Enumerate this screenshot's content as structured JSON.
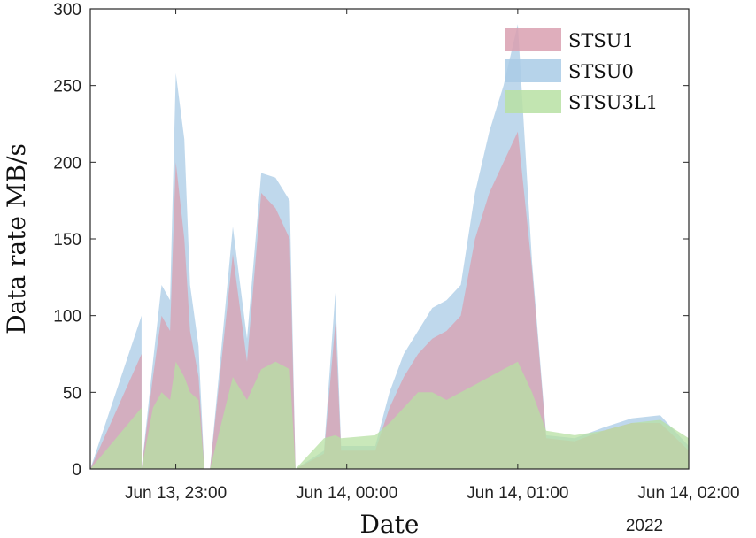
{
  "chart_data": {
    "type": "area",
    "xlabel": "Date",
    "ylabel": "Data rate MB/s",
    "year_label": "2022",
    "ylim": [
      0,
      300
    ],
    "yticks": [
      0,
      50,
      100,
      150,
      200,
      250,
      300
    ],
    "xlim": [
      "2022-06-13 22:30",
      "2022-06-14 02:00"
    ],
    "xticks": [
      {
        "t": "2022-06-13 23:00",
        "label": "Jun 13, 23:00"
      },
      {
        "t": "2022-06-14 00:00",
        "label": "Jun 14, 00:00"
      },
      {
        "t": "2022-06-14 01:00",
        "label": "Jun 14, 01:00"
      },
      {
        "t": "2022-06-14 02:00",
        "label": "Jun 14, 02:00"
      }
    ],
    "grid": false,
    "legend_position": "top-right",
    "series": [
      {
        "name": "STSU1",
        "color": "#d9a0b0",
        "points": [
          [
            "2022-06-13 22:30",
            0
          ],
          [
            "2022-06-13 22:48",
            75
          ],
          [
            "2022-06-13 22:48",
            0
          ],
          [
            "2022-06-13 22:52",
            60
          ],
          [
            "2022-06-13 22:55",
            100
          ],
          [
            "2022-06-13 22:58",
            90
          ],
          [
            "2022-06-13 23:00",
            200
          ],
          [
            "2022-06-13 23:03",
            150
          ],
          [
            "2022-06-13 23:05",
            90
          ],
          [
            "2022-06-13 23:08",
            60
          ],
          [
            "2022-06-13 23:10",
            0
          ],
          [
            "2022-06-13 23:12",
            0
          ],
          [
            "2022-06-13 23:20",
            140
          ],
          [
            "2022-06-13 23:25",
            70
          ],
          [
            "2022-06-13 23:30",
            180
          ],
          [
            "2022-06-13 23:35",
            170
          ],
          [
            "2022-06-13 23:40",
            150
          ],
          [
            "2022-06-13 23:42",
            0
          ],
          [
            "2022-06-13 23:52",
            10
          ],
          [
            "2022-06-13 23:56",
            95
          ],
          [
            "2022-06-13 23:58",
            12
          ],
          [
            "2022-06-14 00:10",
            12
          ],
          [
            "2022-06-14 00:15",
            40
          ],
          [
            "2022-06-14 00:20",
            60
          ],
          [
            "2022-06-14 00:25",
            75
          ],
          [
            "2022-06-14 00:30",
            85
          ],
          [
            "2022-06-14 00:35",
            90
          ],
          [
            "2022-06-14 00:40",
            100
          ],
          [
            "2022-06-14 00:45",
            150
          ],
          [
            "2022-06-14 00:50",
            180
          ],
          [
            "2022-06-14 00:55",
            200
          ],
          [
            "2022-06-14 01:00",
            220
          ],
          [
            "2022-06-14 01:05",
            130
          ],
          [
            "2022-06-14 01:10",
            20
          ],
          [
            "2022-06-14 01:20",
            18
          ],
          [
            "2022-06-14 01:30",
            25
          ],
          [
            "2022-06-14 01:40",
            30
          ],
          [
            "2022-06-14 01:50",
            30
          ],
          [
            "2022-06-14 02:00",
            12
          ]
        ]
      },
      {
        "name": "STSU0",
        "color": "#a9cbe6",
        "points": [
          [
            "2022-06-13 22:30",
            0
          ],
          [
            "2022-06-13 22:48",
            100
          ],
          [
            "2022-06-13 22:48",
            0
          ],
          [
            "2022-06-13 22:52",
            70
          ],
          [
            "2022-06-13 22:55",
            120
          ],
          [
            "2022-06-13 22:58",
            110
          ],
          [
            "2022-06-13 23:00",
            258
          ],
          [
            "2022-06-13 23:03",
            215
          ],
          [
            "2022-06-13 23:05",
            120
          ],
          [
            "2022-06-13 23:08",
            80
          ],
          [
            "2022-06-13 23:10",
            0
          ],
          [
            "2022-06-13 23:12",
            0
          ],
          [
            "2022-06-13 23:20",
            158
          ],
          [
            "2022-06-13 23:25",
            85
          ],
          [
            "2022-06-13 23:30",
            193
          ],
          [
            "2022-06-13 23:35",
            190
          ],
          [
            "2022-06-13 23:40",
            175
          ],
          [
            "2022-06-13 23:42",
            0
          ],
          [
            "2022-06-13 23:52",
            12
          ],
          [
            "2022-06-13 23:56",
            115
          ],
          [
            "2022-06-13 23:58",
            15
          ],
          [
            "2022-06-14 00:10",
            15
          ],
          [
            "2022-06-14 00:15",
            50
          ],
          [
            "2022-06-14 00:20",
            75
          ],
          [
            "2022-06-14 00:25",
            90
          ],
          [
            "2022-06-14 00:30",
            105
          ],
          [
            "2022-06-14 00:35",
            110
          ],
          [
            "2022-06-14 00:40",
            120
          ],
          [
            "2022-06-14 00:45",
            180
          ],
          [
            "2022-06-14 00:50",
            220
          ],
          [
            "2022-06-14 00:55",
            250
          ],
          [
            "2022-06-14 01:00",
            290
          ],
          [
            "2022-06-14 01:05",
            135
          ],
          [
            "2022-06-14 01:10",
            22
          ],
          [
            "2022-06-14 01:20",
            20
          ],
          [
            "2022-06-14 01:30",
            27
          ],
          [
            "2022-06-14 01:40",
            33
          ],
          [
            "2022-06-14 01:50",
            35
          ],
          [
            "2022-06-14 02:00",
            15
          ]
        ]
      },
      {
        "name": "STSU3L1",
        "color": "#b7e0a3",
        "points": [
          [
            "2022-06-13 22:30",
            0
          ],
          [
            "2022-06-13 22:48",
            40
          ],
          [
            "2022-06-13 22:48",
            0
          ],
          [
            "2022-06-13 22:52",
            40
          ],
          [
            "2022-06-13 22:55",
            50
          ],
          [
            "2022-06-13 22:58",
            45
          ],
          [
            "2022-06-13 23:00",
            70
          ],
          [
            "2022-06-13 23:03",
            60
          ],
          [
            "2022-06-13 23:05",
            50
          ],
          [
            "2022-06-13 23:08",
            45
          ],
          [
            "2022-06-13 23:10",
            0
          ],
          [
            "2022-06-13 23:12",
            0
          ],
          [
            "2022-06-13 23:20",
            60
          ],
          [
            "2022-06-13 23:25",
            45
          ],
          [
            "2022-06-13 23:30",
            65
          ],
          [
            "2022-06-13 23:35",
            70
          ],
          [
            "2022-06-13 23:40",
            65
          ],
          [
            "2022-06-13 23:42",
            0
          ],
          [
            "2022-06-13 23:52",
            20
          ],
          [
            "2022-06-13 23:56",
            22
          ],
          [
            "2022-06-13 23:58",
            20
          ],
          [
            "2022-06-14 00:10",
            22
          ],
          [
            "2022-06-14 00:15",
            30
          ],
          [
            "2022-06-14 00:20",
            40
          ],
          [
            "2022-06-14 00:25",
            50
          ],
          [
            "2022-06-14 00:30",
            50
          ],
          [
            "2022-06-14 00:35",
            45
          ],
          [
            "2022-06-14 00:40",
            50
          ],
          [
            "2022-06-14 00:45",
            55
          ],
          [
            "2022-06-14 00:50",
            60
          ],
          [
            "2022-06-14 00:55",
            65
          ],
          [
            "2022-06-14 01:00",
            70
          ],
          [
            "2022-06-14 01:05",
            50
          ],
          [
            "2022-06-14 01:10",
            25
          ],
          [
            "2022-06-14 01:20",
            22
          ],
          [
            "2022-06-14 01:30",
            25
          ],
          [
            "2022-06-14 01:40",
            30
          ],
          [
            "2022-06-14 01:50",
            32
          ],
          [
            "2022-06-14 02:00",
            20
          ]
        ]
      }
    ]
  }
}
